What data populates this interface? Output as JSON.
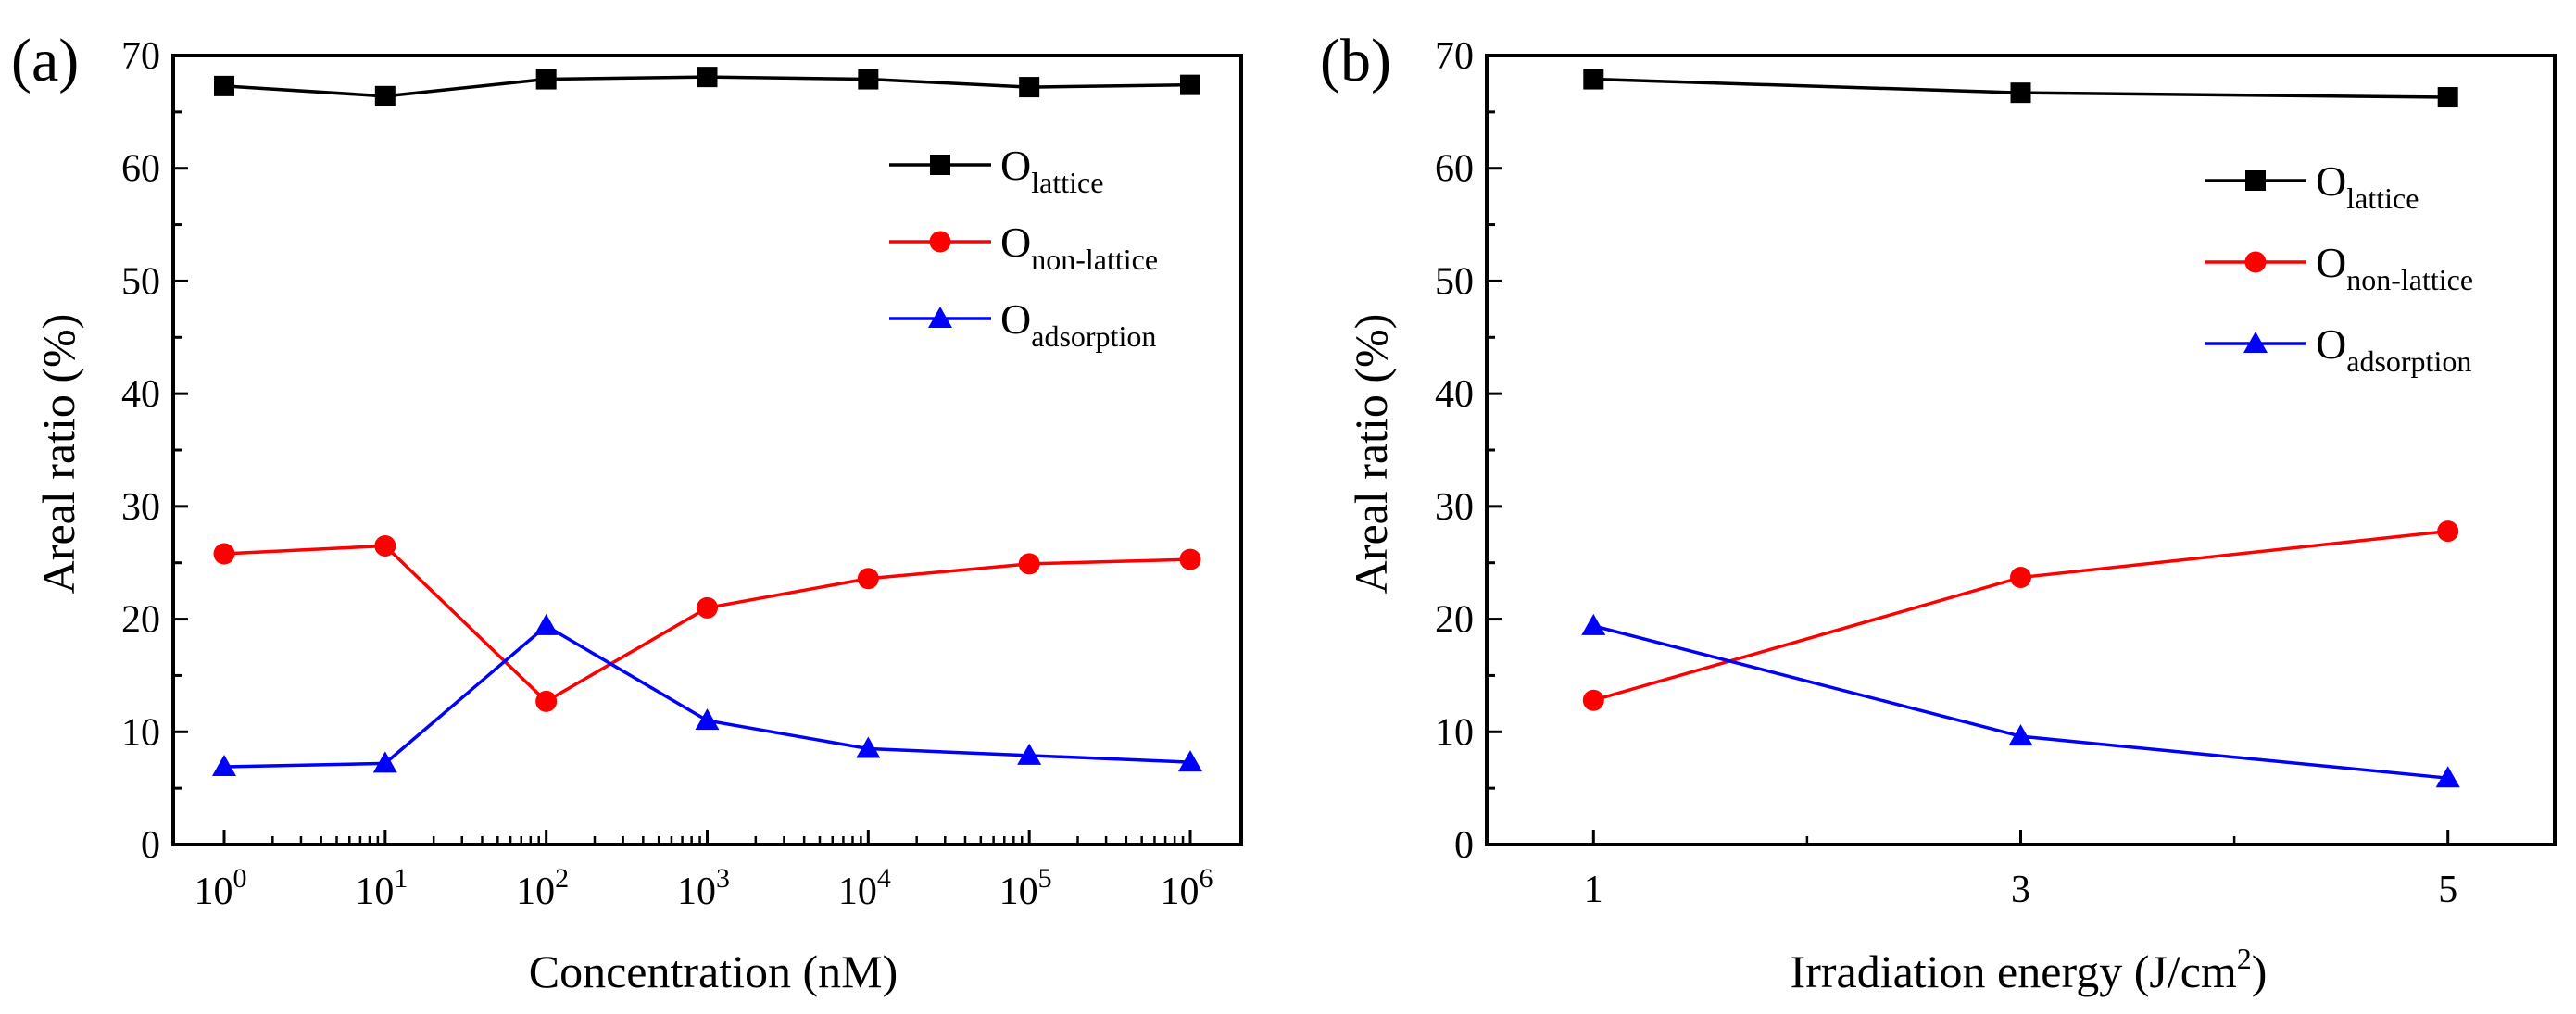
{
  "chart_data": [
    {
      "type": "line",
      "panel_label": "(a)",
      "xlabel": "Concentration (nM)",
      "ylabel": "Areal ratio (%)",
      "xscale": "log",
      "x": [
        1,
        10,
        100,
        1000,
        10000,
        100000,
        1000000
      ],
      "xtick_labels": [
        {
          "base": "10",
          "exp": "0"
        },
        {
          "base": "10",
          "exp": "1"
        },
        {
          "base": "10",
          "exp": "2"
        },
        {
          "base": "10",
          "exp": "3"
        },
        {
          "base": "10",
          "exp": "4"
        },
        {
          "base": "10",
          "exp": "5"
        },
        {
          "base": "10",
          "exp": "6"
        }
      ],
      "ylim": [
        0,
        70
      ],
      "yticks": [
        "0",
        "10",
        "20",
        "30",
        "40",
        "50",
        "60",
        "70"
      ],
      "legend_position": "top-right",
      "series": [
        {
          "name": "lattice",
          "symbol": "O",
          "subscript": "lattice",
          "color": "#000000",
          "marker": "square",
          "values": [
            67.3,
            66.4,
            67.9,
            68.1,
            67.9,
            67.2,
            67.4
          ]
        },
        {
          "name": "non-lattice",
          "symbol": "O",
          "subscript": "non-lattice",
          "color": "#ff0000",
          "marker": "circle",
          "values": [
            25.8,
            26.5,
            12.7,
            21.0,
            23.6,
            24.9,
            25.3
          ]
        },
        {
          "name": "adsorption",
          "symbol": "O",
          "subscript": "adsorption",
          "color": "#0000ff",
          "marker": "triangle",
          "values": [
            6.9,
            7.2,
            19.4,
            11.0,
            8.5,
            7.9,
            7.3
          ]
        }
      ]
    },
    {
      "type": "line",
      "panel_label": "(b)",
      "xlabel": "Irradiation energy (J/cm",
      "xlabel_sup": "2",
      "xlabel_end": ")",
      "ylabel": "Areal ratio (%)",
      "x": [
        1,
        3,
        5
      ],
      "xlim": [
        0.5,
        5.5
      ],
      "xticks": [
        "1",
        "3",
        "5"
      ],
      "ylim": [
        0,
        70
      ],
      "yticks": [
        "0",
        "10",
        "20",
        "30",
        "40",
        "50",
        "60",
        "70"
      ],
      "legend_position": "top-right",
      "series": [
        {
          "name": "lattice",
          "symbol": "O",
          "subscript": "lattice",
          "color": "#000000",
          "marker": "square",
          "values": [
            67.9,
            66.7,
            66.3
          ]
        },
        {
          "name": "non-lattice",
          "symbol": "O",
          "subscript": "non-lattice",
          "color": "#ff0000",
          "marker": "circle",
          "values": [
            12.8,
            23.7,
            27.8
          ]
        },
        {
          "name": "adsorption",
          "symbol": "O",
          "subscript": "adsorption",
          "color": "#0000ff",
          "marker": "triangle",
          "values": [
            19.4,
            9.6,
            5.9
          ]
        }
      ]
    }
  ]
}
